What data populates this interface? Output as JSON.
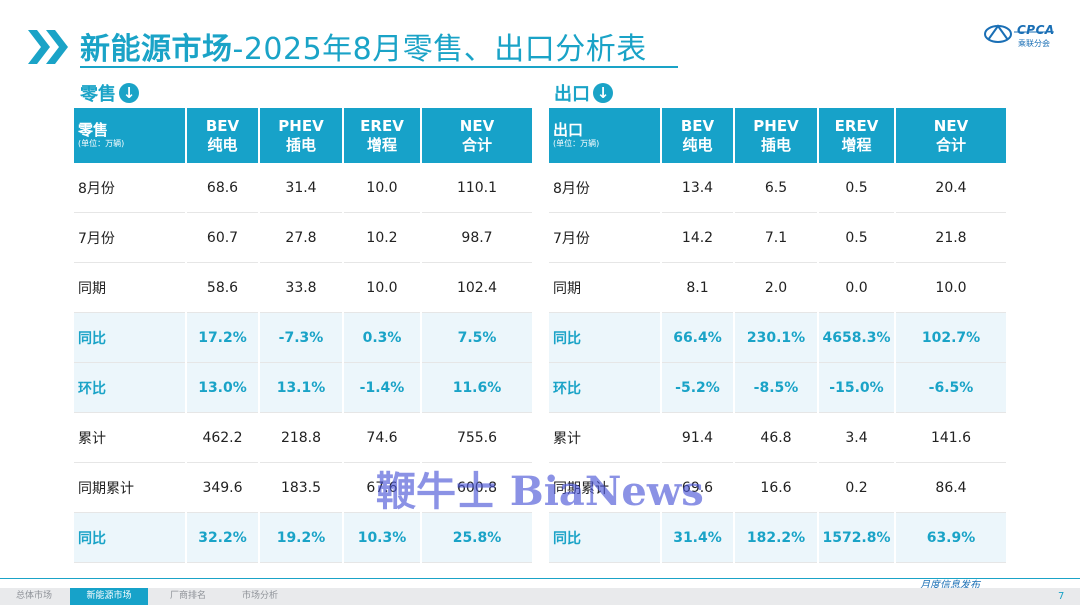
{
  "header": {
    "title_main": "新能源市场",
    "title_sub": "-2025年8月零售、出口分析表",
    "logo_text": "CPCA",
    "logo_sub": "乘联分会"
  },
  "retail": {
    "section_label": "零售",
    "corner_title": "零售",
    "corner_unit": "(单位：万辆)",
    "columns": [
      {
        "l1": "BEV",
        "l2": "纯电"
      },
      {
        "l1": "PHEV",
        "l2": "插电"
      },
      {
        "l1": "EREV",
        "l2": "增程"
      },
      {
        "l1": "NEV",
        "l2": "合计"
      }
    ],
    "rows": [
      {
        "label": "8月份",
        "values": [
          "68.6",
          "31.4",
          "10.0",
          "110.1"
        ]
      },
      {
        "label": "7月份",
        "values": [
          "60.7",
          "27.8",
          "10.2",
          "98.7"
        ]
      },
      {
        "label": "同期",
        "values": [
          "58.6",
          "33.8",
          "10.0",
          "102.4"
        ]
      },
      {
        "label": "同比",
        "values": [
          "17.2%",
          "-7.3%",
          "0.3%",
          "7.5%"
        ]
      },
      {
        "label": "环比",
        "values": [
          "13.0%",
          "13.1%",
          "-1.4%",
          "11.6%"
        ]
      },
      {
        "label": "累计",
        "values": [
          "462.2",
          "218.8",
          "74.6",
          "755.6"
        ]
      },
      {
        "label": "同期累计",
        "values": [
          "349.6",
          "183.5",
          "67.6",
          "600.8"
        ]
      },
      {
        "label": "同比",
        "values": [
          "32.2%",
          "19.2%",
          "10.3%",
          "25.8%"
        ]
      }
    ]
  },
  "export": {
    "section_label": "出口",
    "corner_title": "出口",
    "corner_unit": "(单位：万辆)",
    "columns": [
      {
        "l1": "BEV",
        "l2": "纯电"
      },
      {
        "l1": "PHEV",
        "l2": "插电"
      },
      {
        "l1": "EREV",
        "l2": "增程"
      },
      {
        "l1": "NEV",
        "l2": "合计"
      }
    ],
    "rows": [
      {
        "label": "8月份",
        "values": [
          "13.4",
          "6.5",
          "0.5",
          "20.4"
        ]
      },
      {
        "label": "7月份",
        "values": [
          "14.2",
          "7.1",
          "0.5",
          "21.8"
        ]
      },
      {
        "label": "同期",
        "values": [
          "8.1",
          "2.0",
          "0.0",
          "10.0"
        ]
      },
      {
        "label": "同比",
        "values": [
          "66.4%",
          "230.1%",
          "4658.3%",
          "102.7%"
        ]
      },
      {
        "label": "环比",
        "values": [
          "-5.2%",
          "-8.5%",
          "-15.0%",
          "-6.5%"
        ]
      },
      {
        "label": "累计",
        "values": [
          "91.4",
          "46.8",
          "3.4",
          "141.6"
        ]
      },
      {
        "label": "同期累计",
        "values": [
          "69.6",
          "16.6",
          "0.2",
          "86.4"
        ]
      },
      {
        "label": "同比",
        "values": [
          "31.4%",
          "182.2%",
          "1572.8%",
          "63.9%"
        ]
      }
    ]
  },
  "watermark": "鞭牛士 BiaNews",
  "footer": {
    "tabs": [
      "总体市场",
      "新能源市场",
      "厂商排名",
      "市场分析"
    ],
    "note": "月度信息发布",
    "page": "7"
  },
  "colors": {
    "accent": "#1aa3c7",
    "header_bg": "#17a2c9",
    "highlight_bg": "#ecf6fb"
  }
}
